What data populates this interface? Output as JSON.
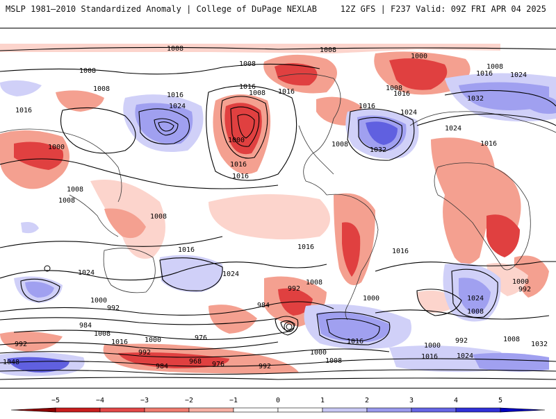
{
  "header": {
    "left_title": "MSLP 1981–2010 Standardized Anomaly | College of DuPage NEXLAB",
    "right_title": "12Z GFS | F237 Valid: 09Z FRI APR 04 2025"
  },
  "isobar_labels": [
    "1008",
    "1008",
    "1008",
    "1000",
    "1008",
    "1008",
    "1016",
    "1024",
    "1016",
    "1016",
    "1008",
    "1024",
    "1000",
    "1016",
    "1016",
    "1008",
    "1032",
    "1016",
    "1024",
    "1032",
    "1024",
    "1016",
    "1008",
    "1000",
    "1008",
    "1008",
    "1016",
    "1008",
    "1016",
    "1016",
    "1024",
    "1024",
    "1016",
    "1008",
    "1016",
    "1000",
    "1000",
    "992",
    "992",
    "984",
    "984",
    "1008",
    "1016",
    "1000",
    "976",
    "992",
    "984",
    "968",
    "976",
    "992",
    "1008",
    "1000",
    "1016",
    "1008",
    "1016",
    "1000",
    "992",
    "1024",
    "1008",
    "1000",
    "992",
    "1016",
    "1024",
    "1008",
    "1032",
    "1048",
    "992"
  ],
  "colorbar": {
    "ticks": [
      "−5",
      "−4",
      "−3",
      "−2",
      "−1",
      "0",
      "1",
      "2",
      "3",
      "4",
      "5"
    ],
    "colors": [
      "#8b0000",
      "#c81e1e",
      "#e34848",
      "#f07c70",
      "#f6b0a4",
      "#ffffff",
      "#ffffff",
      "#c8c8f4",
      "#9a9aee",
      "#6666e6",
      "#3030d8",
      "#0000c0"
    ]
  },
  "legend_colors": {
    "strong_positive": "#e04040",
    "positive": "#f4a090",
    "weak_positive": "#fcd4cc",
    "weak_negative": "#d0d0f8",
    "negative": "#a0a0f0",
    "strong_negative": "#5050e0"
  }
}
